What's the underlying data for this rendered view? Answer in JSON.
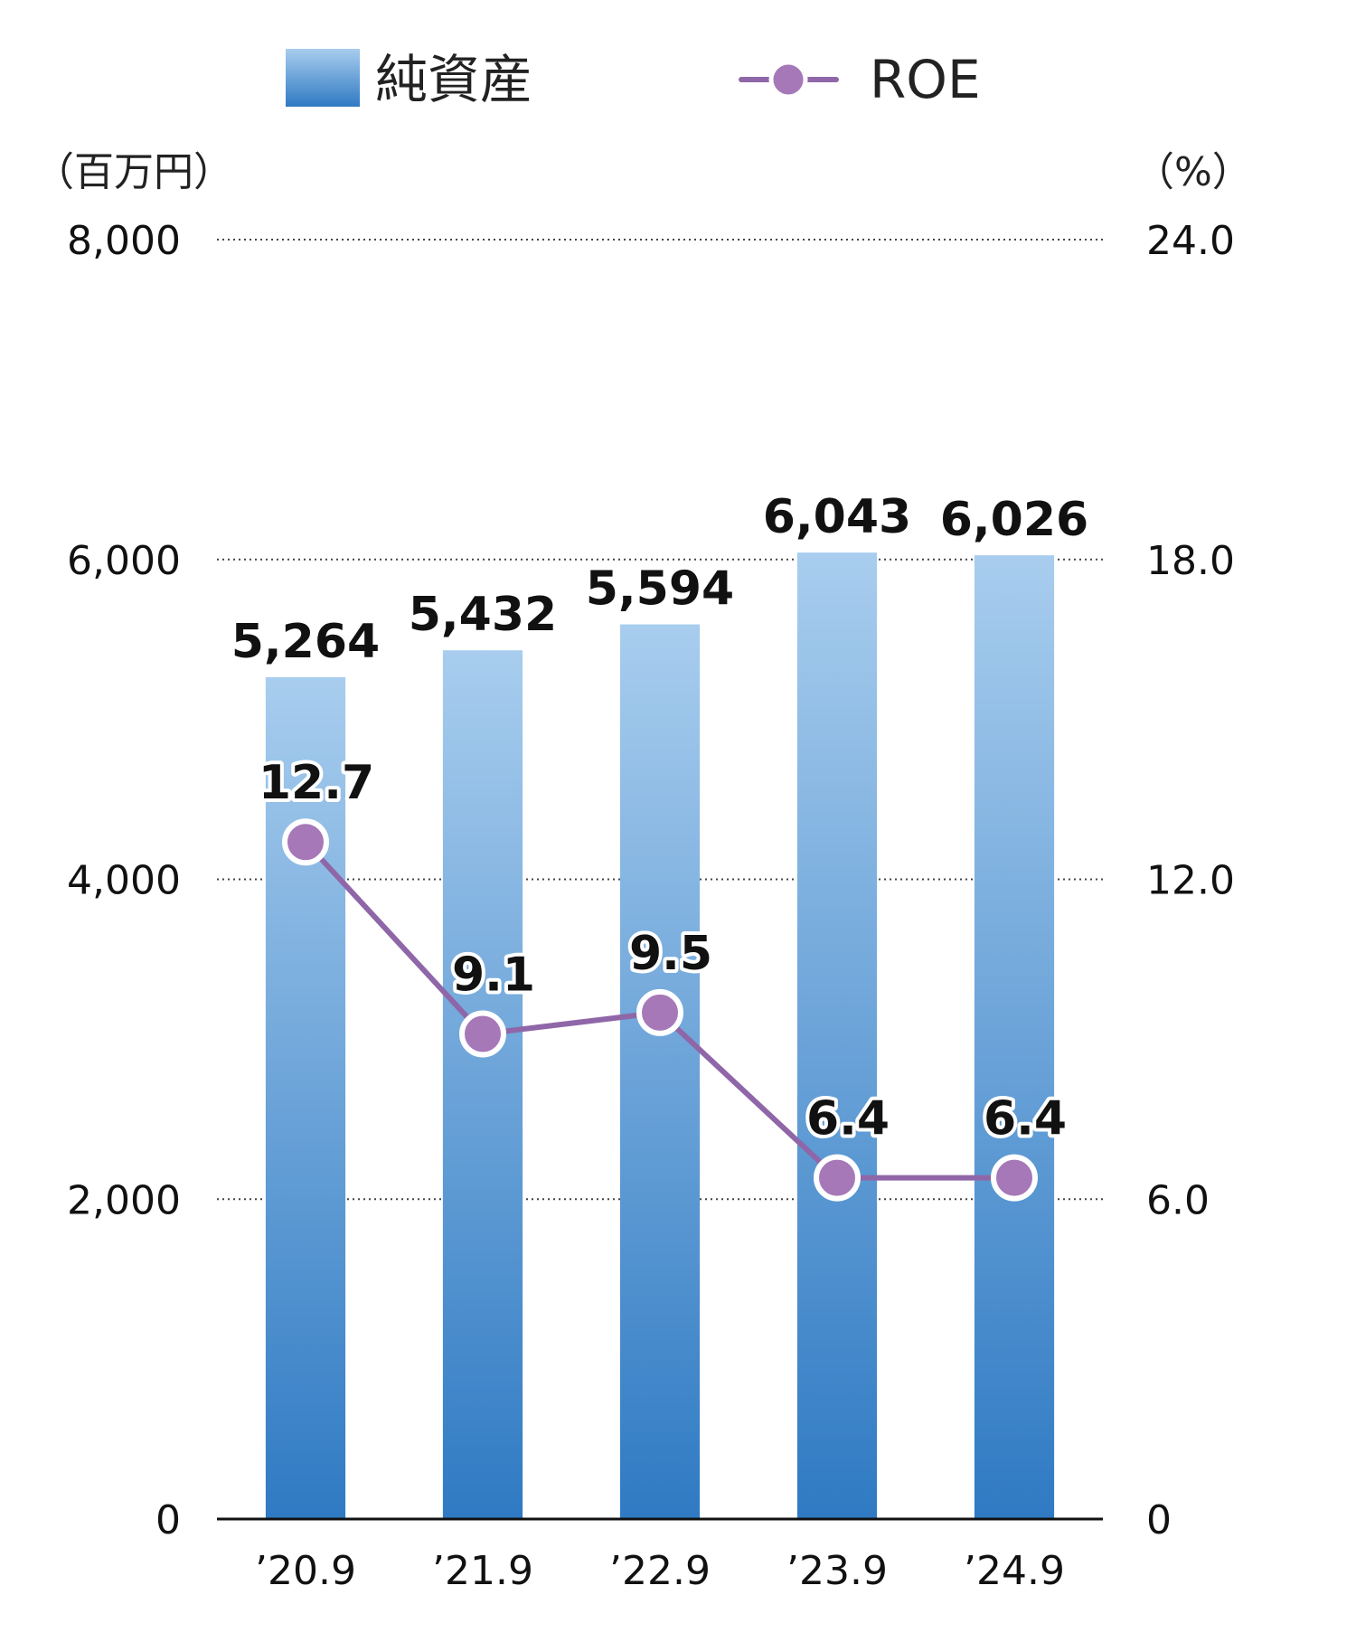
{
  "chart_data": {
    "type": "bar",
    "categories": [
      "’20.9",
      "’21.9",
      "’22.9",
      "’23.9",
      "’24.9"
    ],
    "series": [
      {
        "name": "純資産",
        "type": "bar",
        "axis": "left",
        "values": [
          5264,
          5432,
          5594,
          6043,
          6026
        ],
        "labels": [
          "5,264",
          "5,432",
          "5,594",
          "6,043",
          "6,026"
        ],
        "color_top": "#a8cdee",
        "color_bottom": "#2f7ac3"
      },
      {
        "name": "ROE",
        "type": "line",
        "axis": "right",
        "values": [
          12.7,
          9.1,
          9.5,
          6.4,
          6.4
        ],
        "labels": [
          "12.7",
          "9.1",
          "9.5",
          "6.4",
          "6.4"
        ],
        "color": "#8f67a8",
        "marker_color": "#a678b8"
      }
    ],
    "left_axis": {
      "unit": "（百万円）",
      "min": 0,
      "max": 8000,
      "ticks": [
        0,
        2000,
        4000,
        6000,
        8000
      ],
      "tick_labels": [
        "0",
        "2,000",
        "4,000",
        "6,000",
        "8,000"
      ]
    },
    "right_axis": {
      "unit": "（%）",
      "min": 0,
      "max": 24,
      "ticks": [
        0,
        6,
        12,
        18,
        24
      ],
      "tick_labels": [
        "0",
        "6.0",
        "12.0",
        "18.0",
        "24.0"
      ]
    },
    "grid": true,
    "grid_style": "dotted",
    "legend_position": "top"
  }
}
